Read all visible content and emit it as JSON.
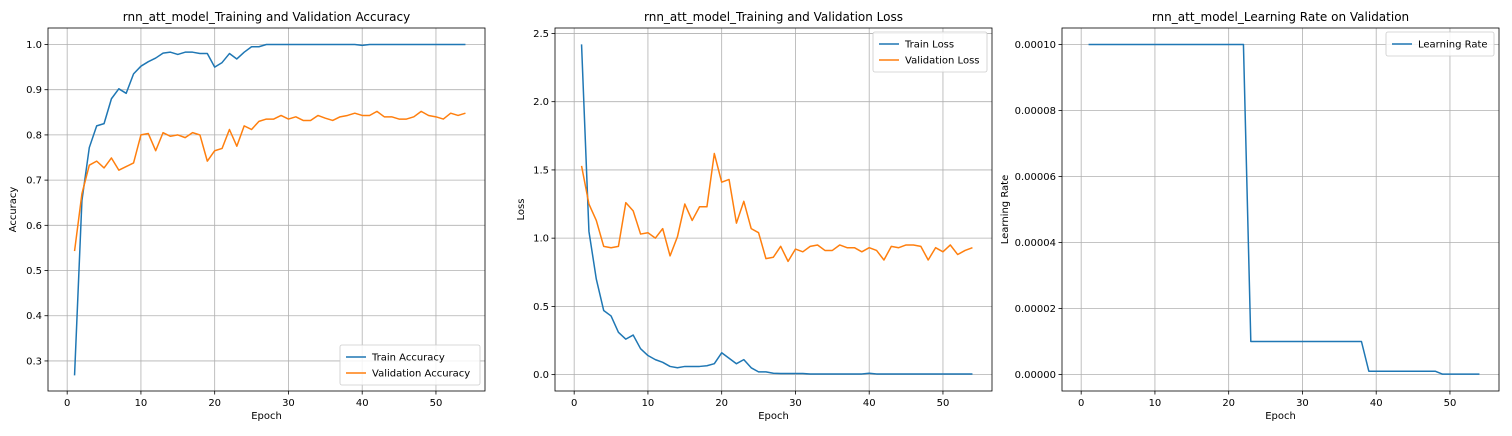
{
  "chart_data": [
    {
      "type": "line",
      "title": "rnn_att_model_Training and Validation Accuracy",
      "xlabel": "Epoch",
      "ylabel": "Accuracy",
      "xlim": [
        -2.6,
        56.65
      ],
      "ylim": [
        0.2335,
        1.0365
      ],
      "xticks": [
        0,
        10,
        20,
        30,
        40,
        50
      ],
      "yticks": [
        0.3,
        0.4,
        0.5,
        0.6,
        0.7,
        0.8,
        0.9,
        1.0
      ],
      "ytick_labels": [
        "0.3",
        "0.4",
        "0.5",
        "0.6",
        "0.7",
        "0.8",
        "0.9",
        "1.0"
      ],
      "grid": true,
      "legend_position": "lower-right",
      "x": [
        1,
        2,
        3,
        4,
        5,
        6,
        7,
        8,
        9,
        10,
        11,
        12,
        13,
        14,
        15,
        16,
        17,
        18,
        19,
        20,
        21,
        22,
        23,
        24,
        25,
        26,
        27,
        28,
        29,
        30,
        31,
        32,
        33,
        34,
        35,
        36,
        37,
        38,
        39,
        40,
        41,
        42,
        43,
        44,
        45,
        46,
        47,
        48,
        49,
        50,
        51,
        52,
        53,
        54
      ],
      "series": [
        {
          "name": "Train Accuracy",
          "color": "#1f77b4",
          "values": [
            0.268,
            0.655,
            0.772,
            0.82,
            0.825,
            0.88,
            0.902,
            0.892,
            0.935,
            0.952,
            0.962,
            0.97,
            0.981,
            0.983,
            0.978,
            0.983,
            0.983,
            0.98,
            0.98,
            0.95,
            0.96,
            0.98,
            0.968,
            0.983,
            0.995,
            0.995,
            1.0,
            1.0,
            1.0,
            1.0,
            1.0,
            1.0,
            1.0,
            1.0,
            1.0,
            1.0,
            1.0,
            1.0,
            1.0,
            0.998,
            1.0,
            1.0,
            1.0,
            1.0,
            1.0,
            1.0,
            1.0,
            1.0,
            1.0,
            1.0,
            1.0,
            1.0,
            1.0,
            1.0
          ]
        },
        {
          "name": "Validation Accuracy",
          "color": "#ff7f0e",
          "values": [
            0.543,
            0.67,
            0.733,
            0.742,
            0.727,
            0.749,
            0.722,
            0.73,
            0.738,
            0.8,
            0.803,
            0.765,
            0.805,
            0.797,
            0.8,
            0.794,
            0.805,
            0.8,
            0.742,
            0.765,
            0.77,
            0.812,
            0.775,
            0.82,
            0.812,
            0.83,
            0.835,
            0.835,
            0.843,
            0.835,
            0.84,
            0.832,
            0.832,
            0.843,
            0.837,
            0.832,
            0.84,
            0.843,
            0.848,
            0.843,
            0.843,
            0.852,
            0.84,
            0.84,
            0.835,
            0.835,
            0.84,
            0.852,
            0.843,
            0.84,
            0.835,
            0.848,
            0.843,
            0.848
          ]
        }
      ]
    },
    {
      "type": "line",
      "title": "rnn_att_model_Training and Validation Loss",
      "xlabel": "Epoch",
      "ylabel": "Loss",
      "xlim": [
        -2.6,
        56.65
      ],
      "ylim": [
        -0.12,
        2.54
      ],
      "xticks": [
        0,
        10,
        20,
        30,
        40,
        50
      ],
      "yticks": [
        0.0,
        0.5,
        1.0,
        1.5,
        2.0,
        2.5
      ],
      "ytick_labels": [
        "0.0",
        "0.5",
        "1.0",
        "1.5",
        "2.0",
        "2.5"
      ],
      "grid": true,
      "legend_position": "upper-right",
      "x": [
        1,
        2,
        3,
        4,
        5,
        6,
        7,
        8,
        9,
        10,
        11,
        12,
        13,
        14,
        15,
        16,
        17,
        18,
        19,
        20,
        21,
        22,
        23,
        24,
        25,
        26,
        27,
        28,
        29,
        30,
        31,
        32,
        33,
        34,
        35,
        36,
        37,
        38,
        39,
        40,
        41,
        42,
        43,
        44,
        45,
        46,
        47,
        48,
        49,
        50,
        51,
        52,
        53,
        54
      ],
      "series": [
        {
          "name": "Train Loss",
          "color": "#1f77b4",
          "values": [
            2.42,
            1.05,
            0.7,
            0.47,
            0.43,
            0.31,
            0.26,
            0.29,
            0.19,
            0.14,
            0.11,
            0.09,
            0.06,
            0.05,
            0.06,
            0.06,
            0.06,
            0.065,
            0.08,
            0.16,
            0.12,
            0.08,
            0.11,
            0.05,
            0.02,
            0.02,
            0.01,
            0.008,
            0.008,
            0.008,
            0.008,
            0.005,
            0.005,
            0.005,
            0.005,
            0.005,
            0.005,
            0.005,
            0.005,
            0.01,
            0.005,
            0.005,
            0.005,
            0.005,
            0.005,
            0.005,
            0.005,
            0.005,
            0.005,
            0.005,
            0.005,
            0.005,
            0.005,
            0.005
          ]
        },
        {
          "name": "Validation Loss",
          "color": "#ff7f0e",
          "values": [
            1.53,
            1.25,
            1.13,
            0.94,
            0.93,
            0.94,
            1.26,
            1.2,
            1.03,
            1.04,
            1.0,
            1.07,
            0.87,
            1.01,
            1.25,
            1.13,
            1.23,
            1.23,
            1.62,
            1.41,
            1.43,
            1.11,
            1.27,
            1.07,
            1.04,
            0.85,
            0.86,
            0.94,
            0.83,
            0.92,
            0.9,
            0.94,
            0.95,
            0.91,
            0.91,
            0.95,
            0.93,
            0.93,
            0.9,
            0.93,
            0.91,
            0.84,
            0.94,
            0.93,
            0.95,
            0.95,
            0.94,
            0.84,
            0.93,
            0.9,
            0.95,
            0.88,
            0.91,
            0.93
          ]
        }
      ]
    },
    {
      "type": "line",
      "title": "rnn_att_model_Learning Rate on Validation",
      "xlabel": "Epoch",
      "ylabel": "Learning Rate",
      "xlim": [
        -2.6,
        56.65
      ],
      "ylim": [
        -5e-06,
        0.000105
      ],
      "xticks": [
        0,
        10,
        20,
        30,
        40,
        50
      ],
      "yticks": [
        0.0,
        2e-05,
        4e-05,
        6e-05,
        8e-05,
        0.0001
      ],
      "ytick_labels": [
        "0.00000",
        "0.00002",
        "0.00004",
        "0.00006",
        "0.00008",
        "0.00010"
      ],
      "grid": true,
      "legend_position": "upper-right",
      "x": [
        1,
        2,
        3,
        4,
        5,
        6,
        7,
        8,
        9,
        10,
        11,
        12,
        13,
        14,
        15,
        16,
        17,
        18,
        19,
        20,
        21,
        22,
        23,
        24,
        25,
        26,
        27,
        28,
        29,
        30,
        31,
        32,
        33,
        34,
        35,
        36,
        37,
        38,
        39,
        40,
        41,
        42,
        43,
        44,
        45,
        46,
        47,
        48,
        49,
        50,
        51,
        52,
        53,
        54
      ],
      "series": [
        {
          "name": "Learning Rate",
          "color": "#1f77b4",
          "values": [
            0.0001,
            0.0001,
            0.0001,
            0.0001,
            0.0001,
            0.0001,
            0.0001,
            0.0001,
            0.0001,
            0.0001,
            0.0001,
            0.0001,
            0.0001,
            0.0001,
            0.0001,
            0.0001,
            0.0001,
            0.0001,
            0.0001,
            0.0001,
            0.0001,
            0.0001,
            1e-05,
            1e-05,
            1e-05,
            1e-05,
            1e-05,
            1e-05,
            1e-05,
            1e-05,
            1e-05,
            1e-05,
            1e-05,
            1e-05,
            1e-05,
            1e-05,
            1e-05,
            1e-05,
            1e-06,
            1e-06,
            1e-06,
            1e-06,
            1e-06,
            1e-06,
            1e-06,
            1e-06,
            1e-06,
            1e-06,
            1e-07,
            1e-07,
            1e-07,
            1e-07,
            1e-07,
            1e-07
          ]
        }
      ]
    }
  ]
}
